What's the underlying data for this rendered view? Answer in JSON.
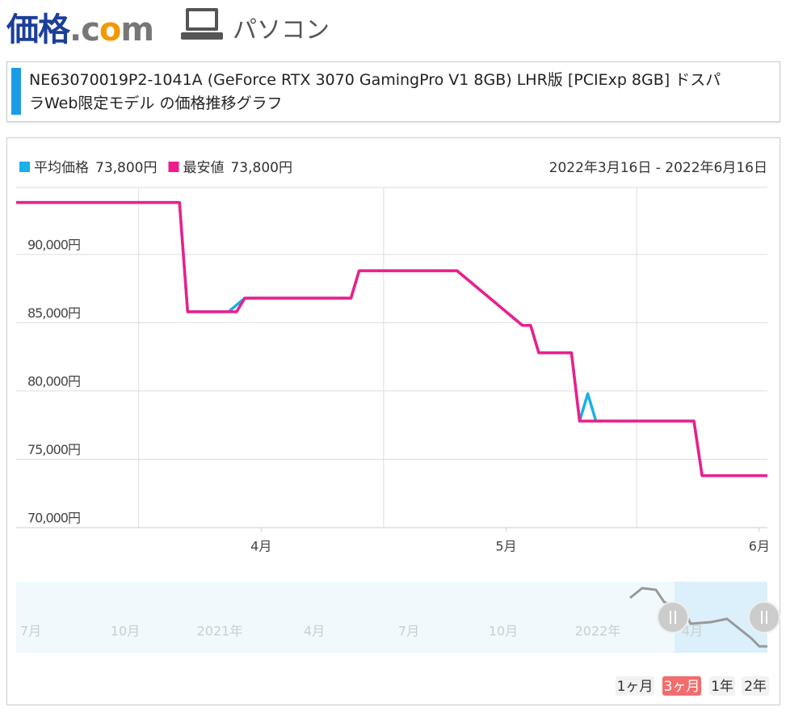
{
  "header": {
    "logo": [
      "価格",
      ".c",
      "o",
      "m"
    ],
    "section": "パソコン"
  },
  "title": "NE63070019P2-1041A (GeForce RTX 3070 GamingPro V1 8GB) LHR版 [PCIExp 8GB] ドスパラWeb限定モデル の価格推移グラフ",
  "chart_data": {
    "type": "line",
    "period": "2022年3月16日 - 2022年6月16日",
    "series": [
      {
        "name": "平均価格",
        "latest": "73,800円",
        "color": "#1ab0e8",
        "x": [
          1,
          21,
          22,
          27,
          29,
          42,
          43,
          55,
          63,
          64,
          65,
          69,
          70,
          71,
          72,
          84,
          85,
          93
        ],
        "values": [
          93800,
          93800,
          85800,
          85800,
          86800,
          86800,
          88800,
          88800,
          84800,
          84800,
          82800,
          82800,
          77800,
          79800,
          77800,
          77800,
          73800,
          73800
        ]
      },
      {
        "name": "最安値",
        "latest": "73,800円",
        "color": "#ee1e8c",
        "x": [
          1,
          21,
          22,
          28,
          29,
          42,
          43,
          55,
          63,
          64,
          65,
          69,
          70,
          84,
          85,
          93
        ],
        "values": [
          93800,
          93800,
          85800,
          85800,
          86800,
          86800,
          88800,
          88800,
          84800,
          84800,
          82800,
          82800,
          77800,
          77800,
          73800,
          73800
        ]
      }
    ],
    "xlim": [
      1,
      93
    ],
    "xticks": [
      {
        "value": 31,
        "label": "4月"
      },
      {
        "value": 61,
        "label": "5月"
      },
      {
        "value": 92,
        "label": "6月"
      }
    ],
    "xgrid": [
      16,
      46,
      77
    ],
    "ylim": [
      70000,
      94900
    ],
    "yticks": [
      {
        "value": 70000,
        "label": "70,000円"
      },
      {
        "value": 75000,
        "label": "75,000円"
      },
      {
        "value": 80000,
        "label": "80,000円"
      },
      {
        "value": 85000,
        "label": "85,000円"
      },
      {
        "value": 90000,
        "label": "90,000円"
      }
    ],
    "grid": true
  },
  "navigator": {
    "labels": [
      "7月",
      "10月",
      "2021年",
      "4月",
      "7月",
      "10月",
      "2022年",
      "4月"
    ]
  },
  "ranges": {
    "options": [
      "1ヶ月",
      "3ヶ月",
      "1年",
      "2年"
    ],
    "selected": 1
  }
}
